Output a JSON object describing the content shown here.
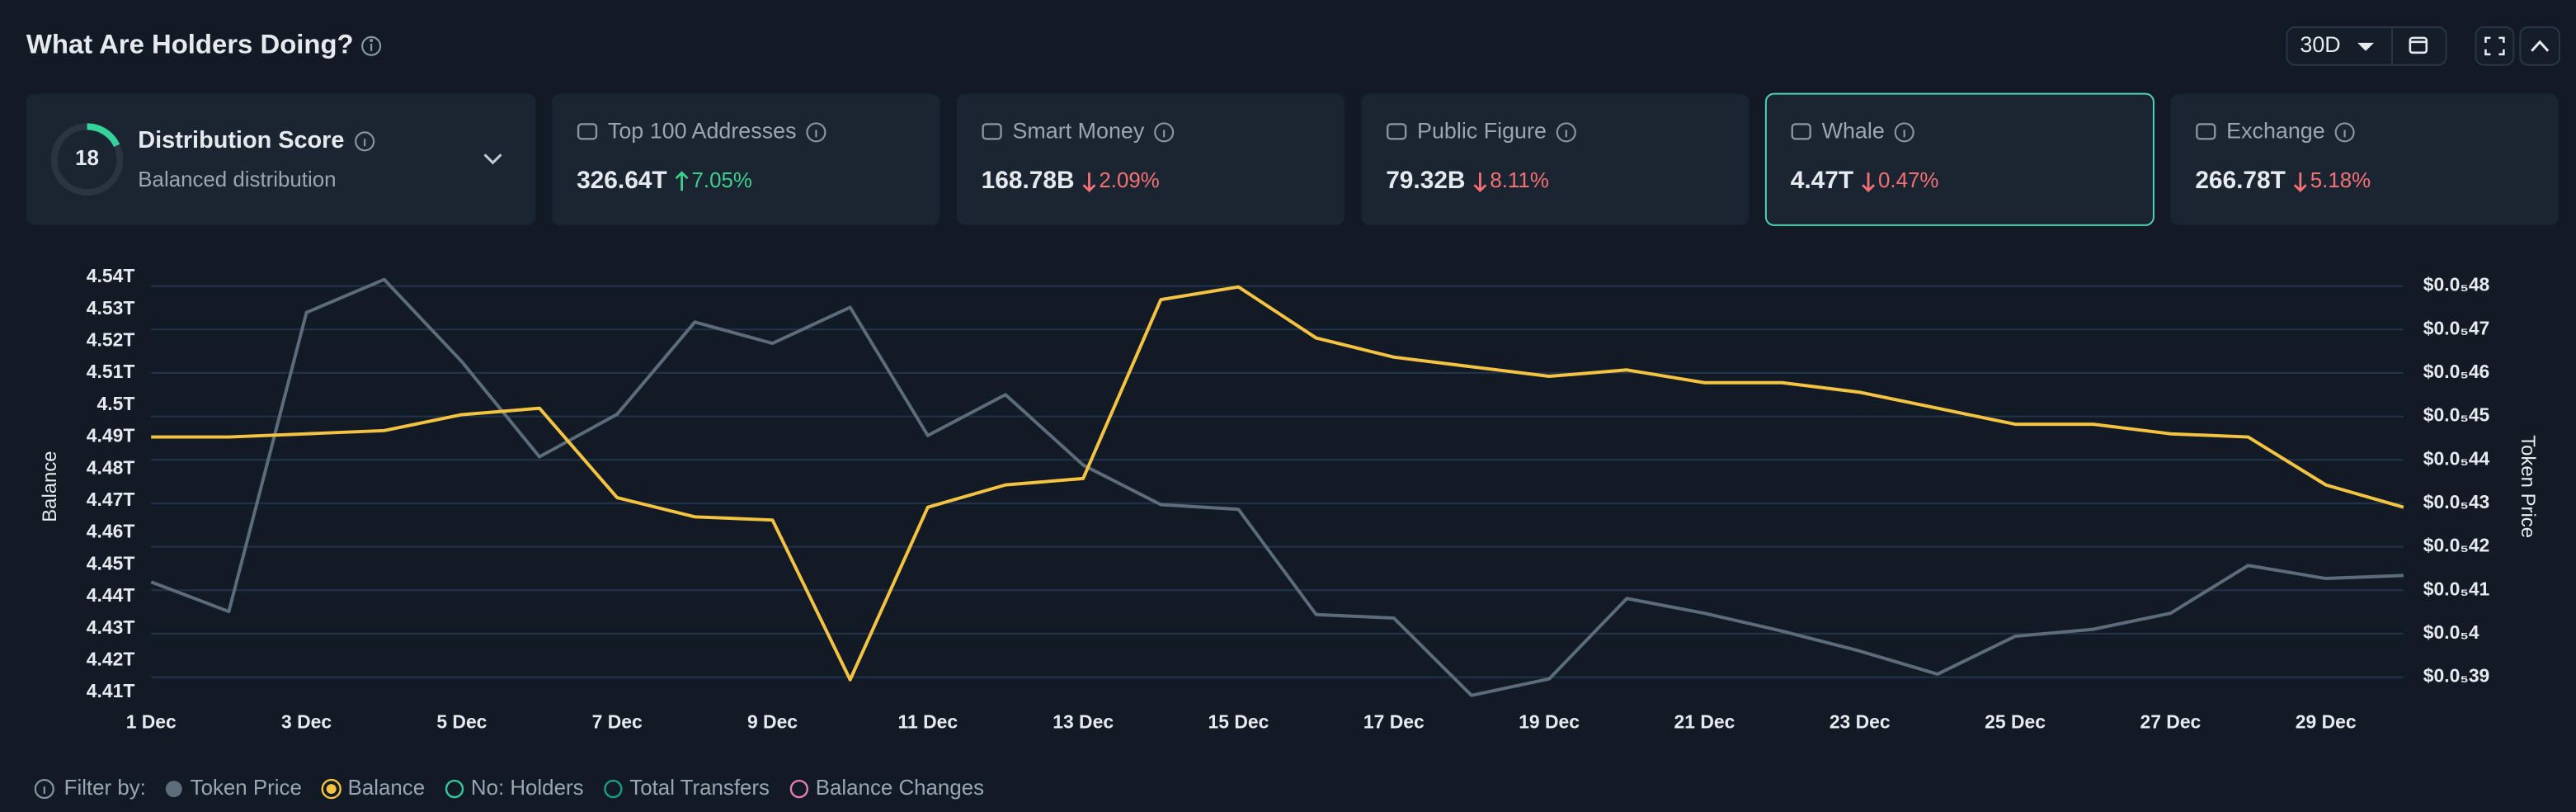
{
  "header": {
    "title": "What Are Holders Doing?",
    "range": "30D"
  },
  "score_card": {
    "score": 18,
    "title": "Distribution Score",
    "subtitle": "Balanced distribution"
  },
  "cards": [
    {
      "label": "Top 100 Addresses",
      "value": "326.64T",
      "change": "7.05%",
      "direction": "up",
      "selected": false
    },
    {
      "label": "Smart Money",
      "value": "168.78B",
      "change": "2.09%",
      "direction": "down",
      "selected": false
    },
    {
      "label": "Public Figure",
      "value": "79.32B",
      "change": "8.11%",
      "direction": "down",
      "selected": false
    },
    {
      "label": "Whale",
      "value": "4.47T",
      "change": "0.47%",
      "direction": "down",
      "selected": true
    },
    {
      "label": "Exchange",
      "value": "266.78T",
      "change": "5.18%",
      "direction": "down",
      "selected": false
    }
  ],
  "chart_data": {
    "type": "line",
    "ylabel": "Balance",
    "y2label": "Token Price",
    "categories": [
      "1 Dec",
      null,
      "3 Dec",
      null,
      "5 Dec",
      null,
      "7 Dec",
      null,
      "9 Dec",
      null,
      "11 Dec",
      null,
      "13 Dec",
      null,
      "15 Dec",
      null,
      "17 Dec",
      null,
      "19 Dec",
      null,
      "21 Dec",
      null,
      "23 Dec",
      null,
      "25 Dec",
      null,
      "27 Dec",
      null,
      "29 Dec",
      null
    ],
    "series": [
      {
        "name": "Token Price",
        "color": "#5d6c7a",
        "axis": "y2",
        "values": [
          4.119e-06,
          4.051e-06,
          4.739e-06,
          4.815e-06,
          4.626e-06,
          4.407e-06,
          4.505e-06,
          4.717e-06,
          4.668e-06,
          4.751e-06,
          4.456e-06,
          4.55e-06,
          4.388e-06,
          4.297e-06,
          4.286e-06,
          4.044e-06,
          4.036e-06,
          3.858e-06,
          3.896e-06,
          4.081e-06,
          4.047e-06,
          4.006e-06,
          3.96e-06,
          3.907e-06,
          3.994e-06,
          4.01e-06,
          4.047e-06,
          4.157e-06,
          4.127e-06,
          4.134e-06
        ]
      },
      {
        "name": "Balance",
        "color": "#f5c342",
        "values": [
          4.49,
          4.49,
          4.491,
          4.492,
          4.497,
          4.499,
          4.471,
          4.465,
          4.464,
          4.414,
          4.468,
          4.475,
          4.477,
          4.533,
          4.537,
          4.521,
          4.515,
          4.512,
          4.509,
          4.511,
          4.507,
          4.507,
          4.504,
          4.499,
          4.494,
          4.494,
          4.491,
          4.49,
          4.475,
          4.468
        ]
      }
    ],
    "ylim": [
      4.408,
      4.54
    ],
    "yticks": [
      {
        "value": 4.54,
        "label": "4.54T"
      },
      {
        "value": 4.53,
        "label": "4.53T"
      },
      {
        "value": 4.52,
        "label": "4.52T"
      },
      {
        "value": 4.51,
        "label": "4.51T"
      },
      {
        "value": 4.5,
        "label": "4.5T"
      },
      {
        "value": 4.49,
        "label": "4.49T"
      },
      {
        "value": 4.48,
        "label": "4.48T"
      },
      {
        "value": 4.47,
        "label": "4.47T"
      },
      {
        "value": 4.46,
        "label": "4.46T"
      },
      {
        "value": 4.45,
        "label": "4.45T"
      },
      {
        "value": 4.44,
        "label": "4.44T"
      },
      {
        "value": 4.43,
        "label": "4.43T"
      },
      {
        "value": 4.42,
        "label": "4.42T"
      },
      {
        "value": 4.41,
        "label": "4.41T"
      }
    ],
    "y2lim": [
      3.85e-06,
      4.82e-06
    ],
    "y2ticks": [
      {
        "value": 4.8e-06,
        "label": "$0.0₅48"
      },
      {
        "value": 4.7e-06,
        "label": "$0.0₅47"
      },
      {
        "value": 4.6e-06,
        "label": "$0.0₅46"
      },
      {
        "value": 4.5e-06,
        "label": "$0.0₅45"
      },
      {
        "value": 4.4e-06,
        "label": "$0.0₅44"
      },
      {
        "value": 4.3e-06,
        "label": "$0.0₅43"
      },
      {
        "value": 4.2e-06,
        "label": "$0.0₅42"
      },
      {
        "value": 4.1e-06,
        "label": "$0.0₅41"
      },
      {
        "value": 4e-06,
        "label": "$0.0₅4"
      },
      {
        "value": 3.9e-06,
        "label": "$0.0₅39"
      }
    ],
    "grid": true
  },
  "filters": {
    "label": "Filter by:",
    "items": [
      {
        "name": "No: Holders",
        "color": "#35c9a0"
      },
      {
        "name": "Total Transfers",
        "color": "#1b9c86"
      },
      {
        "name": "Balance Changes",
        "color": "#e07fb0"
      }
    ]
  }
}
